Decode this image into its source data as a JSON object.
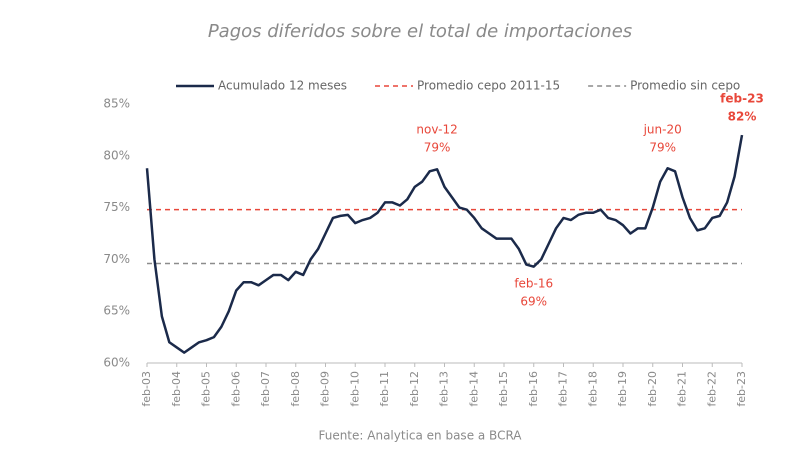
{
  "chart_data": {
    "type": "line",
    "title": "Pagos diferidos sobre el total de importaciones",
    "source": "Fuente: Analytica en base a BCRA",
    "x": [
      2003.083,
      2003.333,
      2003.583,
      2003.833,
      2004.083,
      2004.333,
      2004.583,
      2004.833,
      2005.083,
      2005.333,
      2005.583,
      2005.833,
      2006.083,
      2006.333,
      2006.583,
      2006.833,
      2007.083,
      2007.333,
      2007.583,
      2007.833,
      2008.083,
      2008.333,
      2008.583,
      2008.833,
      2009.083,
      2009.333,
      2009.583,
      2009.833,
      2010.083,
      2010.333,
      2010.583,
      2010.833,
      2011.083,
      2011.333,
      2011.583,
      2011.833,
      2012.083,
      2012.333,
      2012.583,
      2012.833,
      2013.083,
      2013.333,
      2013.583,
      2013.833,
      2014.083,
      2014.333,
      2014.583,
      2014.833,
      2015.083,
      2015.333,
      2015.583,
      2015.833,
      2016.083,
      2016.333,
      2016.583,
      2016.833,
      2017.083,
      2017.333,
      2017.583,
      2017.833,
      2018.083,
      2018.333,
      2018.583,
      2018.833,
      2019.083,
      2019.333,
      2019.583,
      2019.833,
      2020.083,
      2020.333,
      2020.583,
      2020.833,
      2021.083,
      2021.333,
      2021.583,
      2021.833,
      2022.083,
      2022.333,
      2022.583,
      2022.833,
      2023.083
    ],
    "series": [
      {
        "name": "Acumulado 12 meses",
        "color": "#1b2a4a",
        "values": [
          78.8,
          70,
          64.5,
          62,
          61.5,
          61,
          61.5,
          62,
          62.2,
          62.5,
          63.5,
          65,
          67,
          67.8,
          67.8,
          67.5,
          68,
          68.5,
          68.5,
          68,
          68.8,
          68.5,
          70,
          71,
          72.5,
          74,
          74.2,
          74.3,
          73.5,
          73.8,
          74,
          74.5,
          75.5,
          75.5,
          75.2,
          75.8,
          77,
          77.5,
          78.5,
          78.7,
          77,
          76,
          75,
          74.8,
          74,
          73,
          72.5,
          72,
          72,
          72,
          71,
          69.5,
          69.3,
          70,
          71.5,
          73,
          74,
          73.8,
          74.3,
          74.5,
          74.5,
          74.8,
          74,
          73.8,
          73.3,
          72.5,
          73,
          73,
          75,
          77.5,
          78.8,
          78.5,
          76,
          74,
          72.8,
          73,
          74,
          74.2,
          75.5,
          78,
          82
        ]
      }
    ],
    "reference_lines": [
      {
        "name": "Promedio cepo 2011-15",
        "value": 74.8,
        "color": "#e8473a"
      },
      {
        "name": "Promedio sin cepo",
        "value": 69.6,
        "color": "#8c8c8c"
      }
    ],
    "annotations": [
      {
        "x": 2012.833,
        "y": 79,
        "text": "nov-12",
        "value_label": "79%"
      },
      {
        "x": 2016.083,
        "y": 69,
        "text": "feb-16",
        "value_label": "69%"
      },
      {
        "x": 2020.417,
        "y": 79,
        "text": "jun-20",
        "value_label": "79%"
      },
      {
        "x": 2023.083,
        "y": 82,
        "text": "feb-23",
        "value_label": "82%"
      }
    ],
    "annotation_color": "#e8473a",
    "xlim": [
      2003.083,
      2023.083
    ],
    "xticks": [
      {
        "value": 2003.083,
        "label": "feb-03"
      },
      {
        "value": 2004.083,
        "label": "feb-04"
      },
      {
        "value": 2005.083,
        "label": "feb-05"
      },
      {
        "value": 2006.083,
        "label": "feb-06"
      },
      {
        "value": 2007.083,
        "label": "feb-07"
      },
      {
        "value": 2008.083,
        "label": "feb-08"
      },
      {
        "value": 2009.083,
        "label": "feb-09"
      },
      {
        "value": 2010.083,
        "label": "feb-10"
      },
      {
        "value": 2011.083,
        "label": "feb-11"
      },
      {
        "value": 2012.083,
        "label": "feb-12"
      },
      {
        "value": 2013.083,
        "label": "feb-13"
      },
      {
        "value": 2014.083,
        "label": "feb-14"
      },
      {
        "value": 2015.083,
        "label": "feb-15"
      },
      {
        "value": 2016.083,
        "label": "feb-16"
      },
      {
        "value": 2017.083,
        "label": "feb-17"
      },
      {
        "value": 2018.083,
        "label": "feb-18"
      },
      {
        "value": 2019.083,
        "label": "feb-19"
      },
      {
        "value": 2020.083,
        "label": "feb-20"
      },
      {
        "value": 2021.083,
        "label": "feb-21"
      },
      {
        "value": 2022.083,
        "label": "feb-22"
      },
      {
        "value": 2023.083,
        "label": "feb-23"
      }
    ],
    "ylim": [
      60,
      85
    ],
    "yticks": [
      {
        "value": 60,
        "label": "60%"
      },
      {
        "value": 65,
        "label": "65%"
      },
      {
        "value": 70,
        "label": "70%"
      },
      {
        "value": 75,
        "label": "75%"
      },
      {
        "value": 80,
        "label": "80%"
      },
      {
        "value": 85,
        "label": "85%"
      }
    ]
  }
}
